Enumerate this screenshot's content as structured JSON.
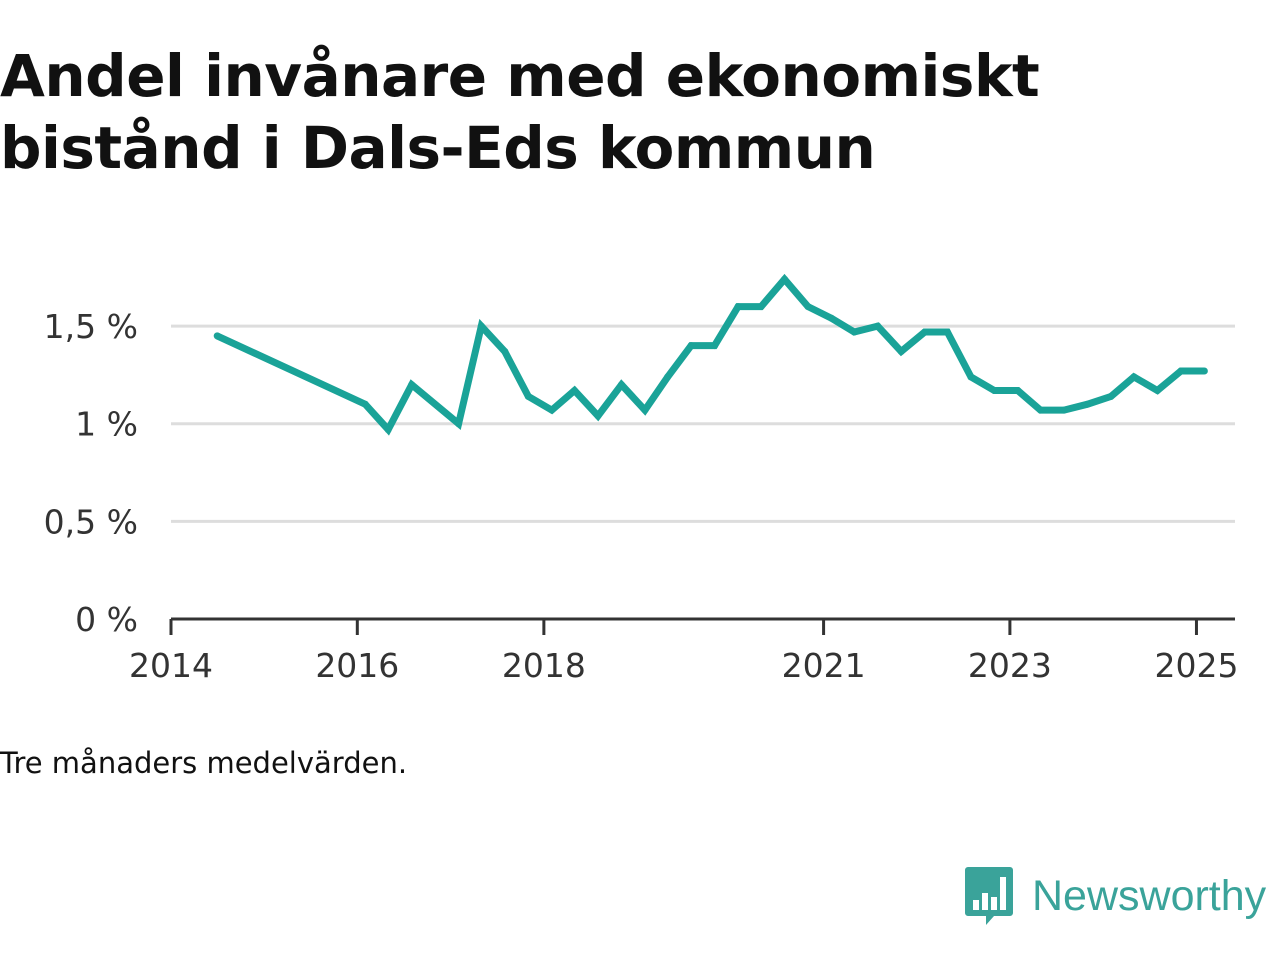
{
  "chart_data": {
    "type": "line",
    "title": "Andel invånare med ekonomiskt bistånd i Dals-Eds kommun",
    "caption": "Tre månaders medelvärden.",
    "xlabel": "",
    "ylabel": "",
    "line_color": "#1aa398",
    "grid": true,
    "ylim": [
      0,
      1.9
    ],
    "xlim": [
      "2014-01-01",
      "2025-06-01"
    ],
    "y_ticks": [
      {
        "value": 0,
        "label": "0 %"
      },
      {
        "value": 0.5,
        "label": "0,5 %"
      },
      {
        "value": 1,
        "label": "1 %"
      },
      {
        "value": 1.5,
        "label": "1,5 %"
      }
    ],
    "x_ticks": [
      {
        "date": "2014-01-01",
        "label": "2014"
      },
      {
        "date": "2016-01-01",
        "label": "2016"
      },
      {
        "date": "2018-01-01",
        "label": "2018"
      },
      {
        "date": "2021-01-01",
        "label": "2021"
      },
      {
        "date": "2023-01-01",
        "label": "2023"
      },
      {
        "date": "2025-01-01",
        "label": "2025"
      }
    ],
    "series": [
      {
        "points": [
          {
            "date": "2014-07-01",
            "value": 1.45
          },
          {
            "date": "2016-02-01",
            "value": 1.1
          },
          {
            "date": "2016-05-01",
            "value": 0.97
          },
          {
            "date": "2016-08-01",
            "value": 1.2
          },
          {
            "date": "2017-02-01",
            "value": 1.0
          },
          {
            "date": "2017-05-01",
            "value": 1.5
          },
          {
            "date": "2017-08-01",
            "value": 1.37
          },
          {
            "date": "2017-11-01",
            "value": 1.14
          },
          {
            "date": "2018-02-01",
            "value": 1.07
          },
          {
            "date": "2018-05-01",
            "value": 1.17
          },
          {
            "date": "2018-08-01",
            "value": 1.04
          },
          {
            "date": "2018-11-01",
            "value": 1.2
          },
          {
            "date": "2019-02-01",
            "value": 1.07
          },
          {
            "date": "2019-05-01",
            "value": 1.24
          },
          {
            "date": "2019-08-01",
            "value": 1.4
          },
          {
            "date": "2019-11-01",
            "value": 1.4
          },
          {
            "date": "2020-02-01",
            "value": 1.6
          },
          {
            "date": "2020-05-01",
            "value": 1.6
          },
          {
            "date": "2020-08-01",
            "value": 1.74
          },
          {
            "date": "2020-11-01",
            "value": 1.6
          },
          {
            "date": "2021-02-01",
            "value": 1.54
          },
          {
            "date": "2021-05-01",
            "value": 1.47
          },
          {
            "date": "2021-08-01",
            "value": 1.5
          },
          {
            "date": "2021-11-01",
            "value": 1.37
          },
          {
            "date": "2022-02-01",
            "value": 1.47
          },
          {
            "date": "2022-05-01",
            "value": 1.47
          },
          {
            "date": "2022-08-01",
            "value": 1.24
          },
          {
            "date": "2022-11-01",
            "value": 1.17
          },
          {
            "date": "2023-02-01",
            "value": 1.17
          },
          {
            "date": "2023-05-01",
            "value": 1.07
          },
          {
            "date": "2023-08-01",
            "value": 1.07
          },
          {
            "date": "2023-11-01",
            "value": 1.1
          },
          {
            "date": "2024-02-01",
            "value": 1.14
          },
          {
            "date": "2024-05-01",
            "value": 1.24
          },
          {
            "date": "2024-08-01",
            "value": 1.17
          },
          {
            "date": "2024-11-01",
            "value": 1.27
          },
          {
            "date": "2025-02-01",
            "value": 1.27
          }
        ]
      }
    ]
  },
  "branding": {
    "logo_text": "Newsworthy",
    "logo_icon": "bar-chart-speech-bubble-icon",
    "logo_color": "#3aa39a"
  }
}
